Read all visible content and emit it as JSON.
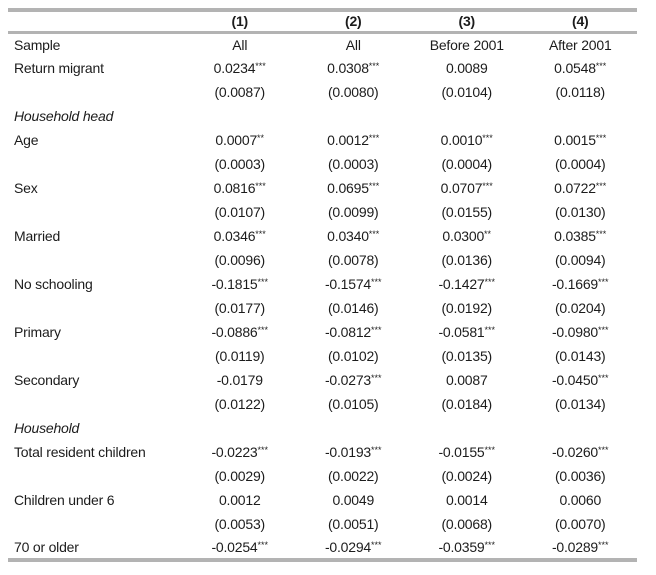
{
  "table": {
    "corner_label": "",
    "column_headers": [
      "(1)",
      "(2)",
      "(3)",
      "(4)"
    ],
    "rows": [
      {
        "type": "plain",
        "label": "Sample",
        "cells": [
          "All",
          "All",
          "Before 2001",
          "After 2001"
        ]
      },
      {
        "type": "coef",
        "label": "Return migrant",
        "cells": [
          [
            "0.0234",
            "***"
          ],
          [
            "0.0308",
            "***"
          ],
          [
            "0.0089",
            ""
          ],
          [
            "0.0548",
            "***"
          ]
        ]
      },
      {
        "type": "se",
        "label": "",
        "cells": [
          "(0.0087)",
          "(0.0080)",
          "(0.0104)",
          "(0.0118)"
        ]
      },
      {
        "type": "section",
        "label": "Household head",
        "cells": [
          "",
          "",
          "",
          ""
        ]
      },
      {
        "type": "coef",
        "label": "Age",
        "cells": [
          [
            "0.0007",
            "**"
          ],
          [
            "0.0012",
            "***"
          ],
          [
            "0.0010",
            "***"
          ],
          [
            "0.0015",
            "***"
          ]
        ]
      },
      {
        "type": "se",
        "label": "",
        "cells": [
          "(0.0003)",
          "(0.0003)",
          "(0.0004)",
          "(0.0004)"
        ]
      },
      {
        "type": "coef",
        "label": "Sex",
        "cells": [
          [
            "0.0816",
            "***"
          ],
          [
            "0.0695",
            "***"
          ],
          [
            "0.0707",
            "***"
          ],
          [
            "0.0722",
            "***"
          ]
        ]
      },
      {
        "type": "se",
        "label": "",
        "cells": [
          "(0.0107)",
          "(0.0099)",
          "(0.0155)",
          "(0.0130)"
        ]
      },
      {
        "type": "coef",
        "label": "Married",
        "cells": [
          [
            "0.0346",
            "***"
          ],
          [
            "0.0340",
            "***"
          ],
          [
            "0.0300",
            "**"
          ],
          [
            "0.0385",
            "***"
          ]
        ]
      },
      {
        "type": "se",
        "label": "",
        "cells": [
          "(0.0096)",
          "(0.0078)",
          "(0.0136)",
          "(0.0094)"
        ]
      },
      {
        "type": "coef",
        "label": "No schooling",
        "cells": [
          [
            "-0.1815",
            "***"
          ],
          [
            "-0.1574",
            "***"
          ],
          [
            "-0.1427",
            "***"
          ],
          [
            "-0.1669",
            "***"
          ]
        ]
      },
      {
        "type": "se",
        "label": "",
        "cells": [
          "(0.0177)",
          "(0.0146)",
          "(0.0192)",
          "(0.0204)"
        ]
      },
      {
        "type": "coef",
        "label": "Primary",
        "cells": [
          [
            "-0.0886",
            "***"
          ],
          [
            "-0.0812",
            "***"
          ],
          [
            "-0.0581",
            "***"
          ],
          [
            "-0.0980",
            "***"
          ]
        ]
      },
      {
        "type": "se",
        "label": "",
        "cells": [
          "(0.0119)",
          "(0.0102)",
          "(0.0135)",
          "(0.0143)"
        ]
      },
      {
        "type": "coef",
        "label": "Secondary",
        "cells": [
          [
            "-0.0179",
            ""
          ],
          [
            "-0.0273",
            "***"
          ],
          [
            "0.0087",
            ""
          ],
          [
            "-0.0450",
            "***"
          ]
        ]
      },
      {
        "type": "se",
        "label": "",
        "cells": [
          "(0.0122)",
          "(0.0105)",
          "(0.0184)",
          "(0.0134)"
        ]
      },
      {
        "type": "section",
        "label": "Household",
        "cells": [
          "",
          "",
          "",
          ""
        ]
      },
      {
        "type": "coef",
        "label": "Total resident children",
        "cells": [
          [
            "-0.0223",
            "***"
          ],
          [
            "-0.0193",
            "***"
          ],
          [
            "-0.0155",
            "***"
          ],
          [
            "-0.0260",
            "***"
          ]
        ]
      },
      {
        "type": "se",
        "label": "",
        "cells": [
          "(0.0029)",
          "(0.0022)",
          "(0.0024)",
          "(0.0036)"
        ]
      },
      {
        "type": "coef",
        "label": "Children under 6",
        "cells": [
          [
            "0.0012",
            ""
          ],
          [
            "0.0049",
            ""
          ],
          [
            "0.0014",
            ""
          ],
          [
            "0.0060",
            ""
          ]
        ]
      },
      {
        "type": "se",
        "label": "",
        "cells": [
          "(0.0053)",
          "(0.0051)",
          "(0.0068)",
          "(0.0070)"
        ]
      },
      {
        "type": "coef",
        "label": "70 or older",
        "cells": [
          [
            "-0.0254",
            "***"
          ],
          [
            "-0.0294",
            "***"
          ],
          [
            "-0.0359",
            "***"
          ],
          [
            "-0.0289",
            "***"
          ]
        ]
      }
    ],
    "colors": {
      "rule": "#b3b3b3",
      "text": "#1c1c1c",
      "background": "#ffffff"
    }
  }
}
